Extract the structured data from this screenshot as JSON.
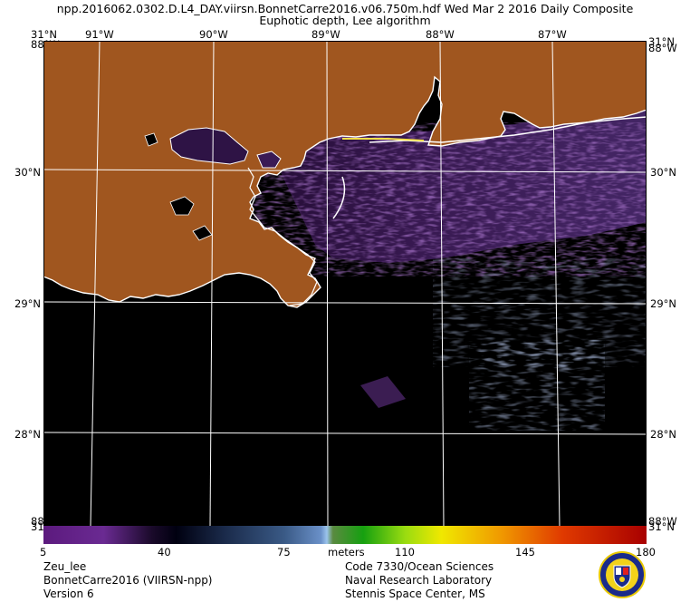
{
  "header": {
    "title_line1": "npp.2016062.0302.D.L4_DAY.viirsn.BonnetCarre2016.v06.750m.hdf     Wed Mar  2 2016 Daily Composite",
    "title_line2": "Euphotic depth, Lee algorithm"
  },
  "map": {
    "lon_labels": [
      "91°W",
      "90°W",
      "89°W",
      "88°W",
      "87°W"
    ],
    "lat_labels": [
      "30°N",
      "29°N",
      "28°N"
    ],
    "corner_labels": {
      "top_left": "31°N",
      "top_left_under": "88°W",
      "top_right": "31°N",
      "top_right_under": "88°W",
      "bottom_left": "88°W",
      "bottom_left_under": "31°N",
      "bottom_right": "88°W",
      "bottom_right_under": "31°N"
    },
    "colors": {
      "land": "#a0561f",
      "water_dark": "#000000",
      "coastline": "#ffffff",
      "grid": "#ffffff"
    }
  },
  "colorbar": {
    "ticks": [
      "5",
      "40",
      "75",
      "110",
      "145",
      "180"
    ],
    "units": "meters"
  },
  "footer": {
    "left": [
      "Zeu_lee",
      "BonnetCarre2016 (VIIRSN-npp)",
      "Version 6"
    ],
    "center": [
      "Code 7330/Ocean Sciences",
      "Naval Research Laboratory",
      "Stennis Space Center, MS"
    ]
  }
}
